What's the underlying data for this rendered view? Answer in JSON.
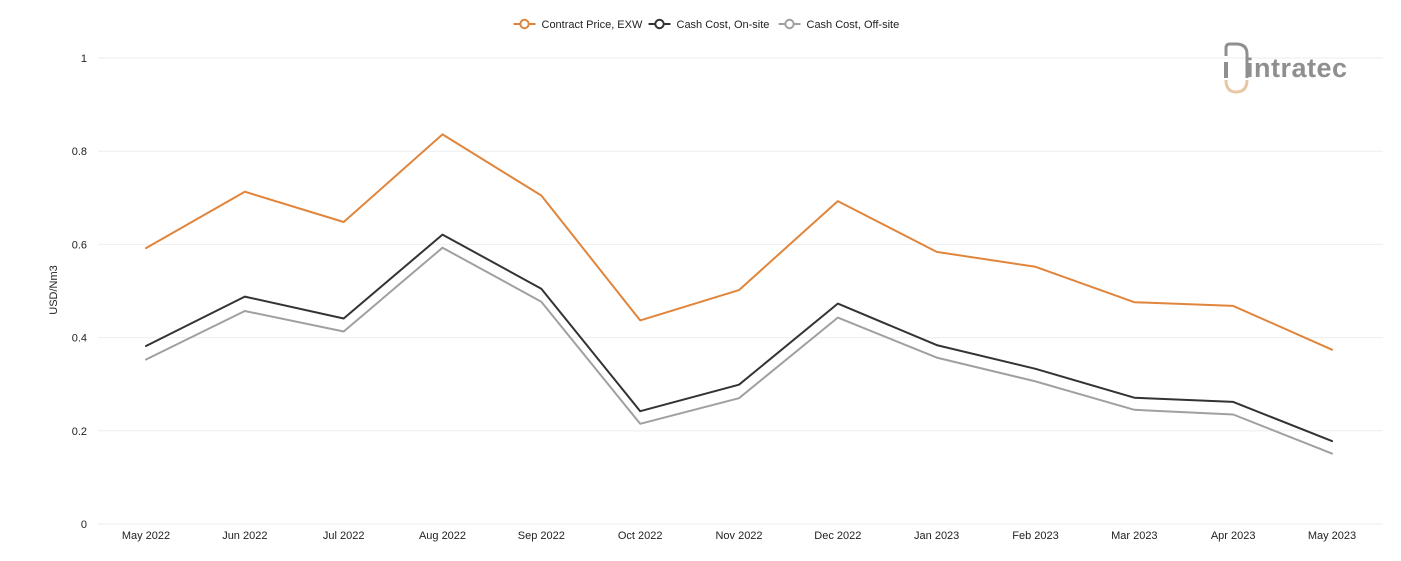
{
  "chart_data": {
    "type": "line",
    "title": "",
    "xlabel": "",
    "ylabel": "USD/Nm3",
    "ylim": [
      0,
      1
    ],
    "yticks": [
      0,
      0.2,
      0.4,
      0.6,
      0.8,
      1
    ],
    "ytick_labels": [
      "0",
      "0.2",
      "0.4",
      "0.6",
      "0.8",
      "1"
    ],
    "grid": true,
    "legend_position": "top-center",
    "categories": [
      "May 2022",
      "Jun 2022",
      "Jul 2022",
      "Aug 2022",
      "Sep 2022",
      "Oct 2022",
      "Nov 2022",
      "Dec 2022",
      "Jan 2023",
      "Feb 2023",
      "Mar 2023",
      "Apr 2023",
      "May 2023"
    ],
    "series": [
      {
        "name": "Contract Price, EXW",
        "color": "#e0853b",
        "values": [
          0.592,
          0.713,
          0.648,
          0.836,
          0.705,
          0.437,
          0.502,
          0.693,
          0.584,
          0.552,
          0.476,
          0.468,
          0.374
        ]
      },
      {
        "name": "Cash Cost, On-site",
        "color": "#333333",
        "values": [
          0.382,
          0.488,
          0.441,
          0.621,
          0.505,
          0.242,
          0.299,
          0.473,
          0.384,
          0.333,
          0.271,
          0.262,
          0.178
        ]
      },
      {
        "name": "Cash Cost, Off-site",
        "color": "#a0a0a0",
        "values": [
          0.353,
          0.457,
          0.413,
          0.593,
          0.477,
          0.215,
          0.27,
          0.443,
          0.357,
          0.306,
          0.245,
          0.235,
          0.151
        ]
      }
    ]
  },
  "logo": {
    "text": "intratec",
    "icon": "intratec-logo-icon",
    "color": "#8f8f8f",
    "accent": "#e8c7a4"
  }
}
